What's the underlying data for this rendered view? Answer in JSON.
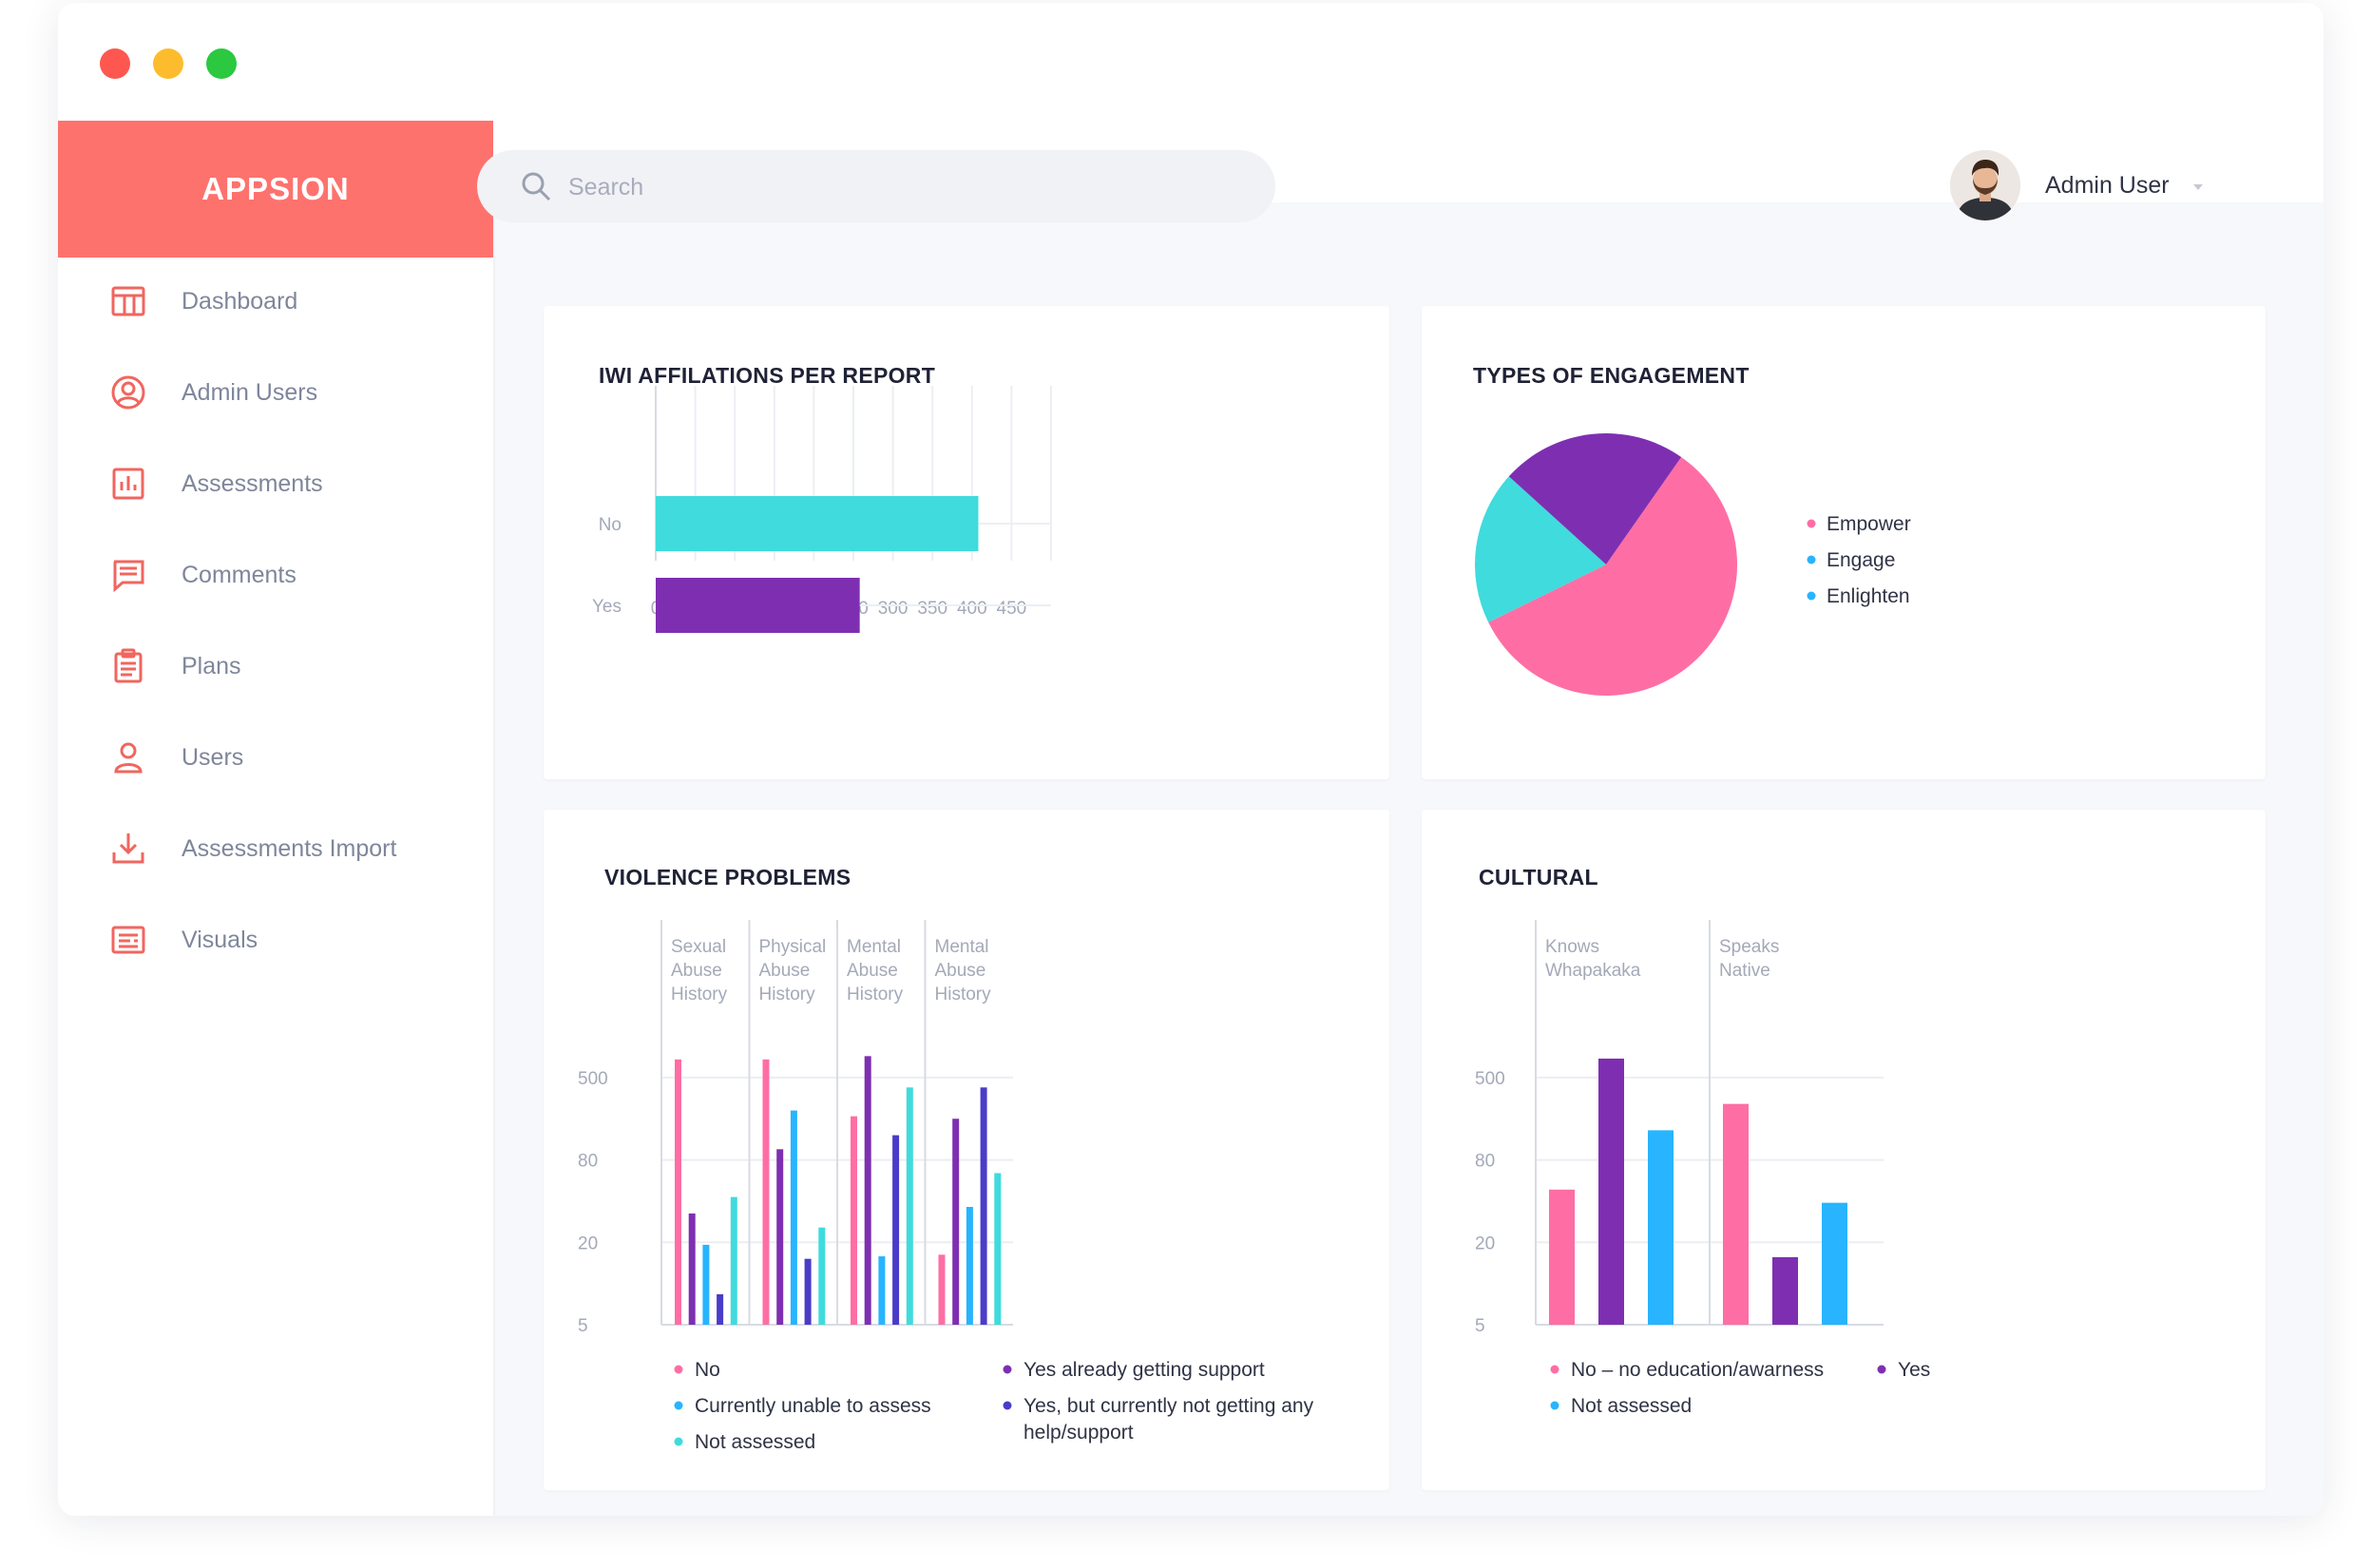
{
  "app": {
    "brand": "APPSION"
  },
  "search": {
    "placeholder": "Search",
    "value": ""
  },
  "user": {
    "name": "Admin User"
  },
  "sidebar": {
    "items": [
      {
        "label": "Dashboard",
        "icon": "dashboard-icon"
      },
      {
        "label": "Admin Users",
        "icon": "admin-users-icon"
      },
      {
        "label": "Assessments",
        "icon": "assessments-icon"
      },
      {
        "label": "Comments",
        "icon": "comments-icon"
      },
      {
        "label": "Plans",
        "icon": "plans-icon"
      },
      {
        "label": "Users",
        "icon": "users-icon"
      },
      {
        "label": "Assessments Import",
        "icon": "import-icon"
      },
      {
        "label": "Visuals",
        "icon": "visuals-icon"
      }
    ]
  },
  "colors": {
    "accent": "#fe726e",
    "pink": "#fe6ea4",
    "purple": "#7e2fb1",
    "cyan": "#40dbdd",
    "blue": "#28b4ff",
    "indigo": "#4a3cc8",
    "nav_icon": "#f0665f"
  },
  "cards": {
    "iwi": {
      "title": "IWI AFFILATIONS PER REPORT"
    },
    "engagement": {
      "title": "TYPES OF ENGAGEMENT"
    },
    "violence": {
      "title": "VIOLENCE PROBLEMS"
    },
    "cultural": {
      "title": "CULTURAL"
    }
  },
  "chart_data": [
    {
      "id": "iwi",
      "type": "bar",
      "orientation": "horizontal",
      "title": "IWI AFFILATIONS PER REPORT",
      "categories": [
        "No",
        "Yes"
      ],
      "values": [
        408,
        258
      ],
      "colors": [
        "#40dbdd",
        "#7e2fb1"
      ],
      "xlim": [
        0,
        500
      ],
      "xticks": [
        0,
        50,
        100,
        150,
        200,
        250,
        300,
        350,
        400,
        450
      ],
      "grid": true
    },
    {
      "id": "engagement",
      "type": "pie",
      "title": "TYPES OF ENGAGEMENT",
      "labels": [
        "Empower",
        "Engage",
        "Enlighten"
      ],
      "values": [
        58,
        19,
        23
      ],
      "slice_colors": [
        "#fe6ea4",
        "#40dbdd",
        "#7e2fb1"
      ],
      "legend_dot_colors": [
        "#fe6ea4",
        "#28b4ff",
        "#28b4ff"
      ],
      "legend": "right"
    },
    {
      "id": "violence",
      "type": "bar",
      "title": "VIOLENCE PROBLEMS",
      "categories": [
        [
          "Sexual",
          "Abuse",
          "History"
        ],
        [
          "Physical",
          "Abuse",
          "History"
        ],
        [
          "Mental",
          "Abuse",
          "History"
        ],
        [
          "Mental",
          "Abuse",
          "History"
        ]
      ],
      "yticks": [
        "5",
        "20",
        "80",
        "500"
      ],
      "ymax_level": 3.3,
      "series": [
        {
          "name": "No",
          "color": "#fe6ea4",
          "levels": [
            3.22,
            3.22,
            2.53,
            0.85
          ]
        },
        {
          "name": "Yes already getting support",
          "color": "#7e2fb1",
          "levels": [
            1.35,
            2.13,
            3.26,
            2.5
          ]
        },
        {
          "name": "Currently unable to assess",
          "color": "#28b4ff",
          "levels": [
            0.97,
            2.6,
            0.83,
            1.43
          ]
        },
        {
          "name": "Yes, but currently not getting any help/support",
          "color": "#4a3cc8",
          "levels": [
            0.37,
            0.8,
            2.3,
            2.88
          ]
        },
        {
          "name": "Not assessed",
          "color": "#40dbdd",
          "levels": [
            1.55,
            1.18,
            2.88,
            1.84
          ]
        }
      ],
      "legend_left": [
        "No",
        "Currently unable to assess",
        "Not assessed"
      ],
      "legend_right": [
        "Yes already getting support",
        [
          "Yes, but currently not getting any",
          "help/support"
        ]
      ],
      "legend": "bottom"
    },
    {
      "id": "cultural",
      "type": "bar",
      "title": "CULTURAL",
      "categories": [
        [
          "Knows",
          "Whapakaka"
        ],
        [
          "Speaks",
          "Native"
        ]
      ],
      "yticks": [
        "5",
        "20",
        "80",
        "500"
      ],
      "ymax_level": 3.3,
      "series": [
        {
          "name": "No – no education/awarness",
          "color": "#fe6ea4",
          "levels": [
            1.64,
            2.68
          ]
        },
        {
          "name": "Yes",
          "color": "#7e2fb1",
          "levels": [
            3.23,
            0.82
          ]
        },
        {
          "name": "Not assessed",
          "color": "#28b4ff",
          "levels": [
            2.36,
            1.48
          ]
        }
      ],
      "legend": "bottom"
    }
  ]
}
